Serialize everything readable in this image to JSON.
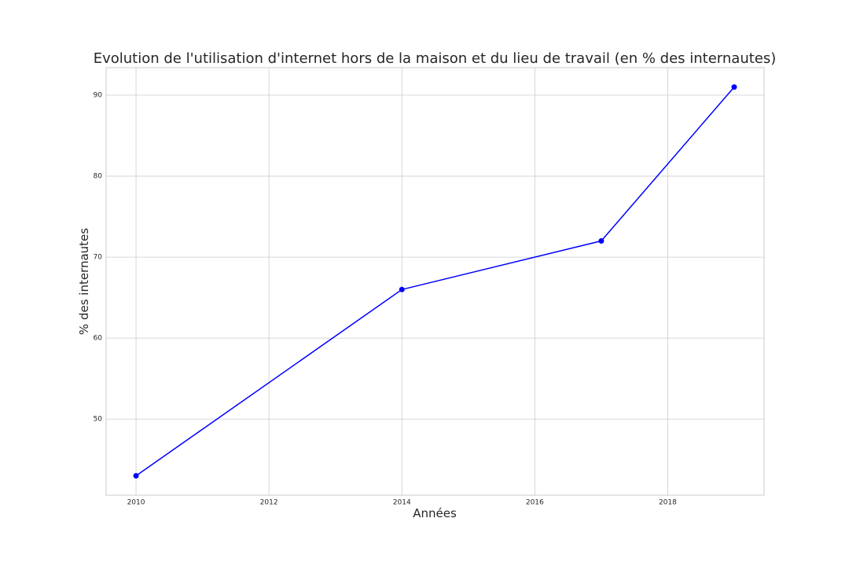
{
  "chart_data": {
    "type": "line",
    "title": "Evolution de l'utilisation d'internet hors de la maison et du lieu de travail (en % des internautes)",
    "xlabel": "Années",
    "ylabel": "% des internautes",
    "x": [
      2010,
      2014,
      2017,
      2019
    ],
    "series": [
      {
        "values": [
          43,
          66,
          72,
          91
        ]
      }
    ],
    "xlim": [
      2009.55,
      2019.45
    ],
    "ylim": [
      40.6,
      93.4
    ],
    "xticks": [
      2010,
      2012,
      2014,
      2016,
      2018
    ],
    "yticks": [
      50,
      60,
      70,
      80,
      90
    ],
    "grid": true,
    "line_color": "#0000ff",
    "marker": "circle"
  }
}
